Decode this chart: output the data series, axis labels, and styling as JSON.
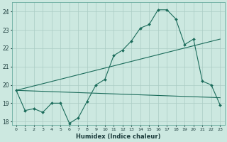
{
  "xlabel": "Humidex (Indice chaleur)",
  "bg_color": "#cce8e0",
  "grid_color": "#aaccc4",
  "line_color": "#1a6b5a",
  "xlim": [
    -0.5,
    23.5
  ],
  "ylim": [
    17.8,
    24.5
  ],
  "yticks": [
    18,
    19,
    20,
    21,
    22,
    23,
    24
  ],
  "xticks": [
    0,
    1,
    2,
    3,
    4,
    5,
    6,
    7,
    8,
    9,
    10,
    11,
    12,
    13,
    14,
    15,
    16,
    17,
    18,
    19,
    20,
    21,
    22,
    23
  ],
  "line1_x": [
    0,
    1,
    2,
    3,
    4,
    5,
    6,
    7,
    8,
    9,
    10,
    11,
    12,
    13,
    14,
    15,
    16,
    17,
    18,
    19,
    20,
    21,
    22,
    23
  ],
  "line1_y": [
    19.7,
    18.6,
    18.7,
    18.5,
    19.0,
    19.0,
    17.9,
    18.2,
    19.1,
    20.0,
    20.3,
    21.6,
    21.9,
    22.4,
    23.1,
    23.3,
    24.1,
    24.1,
    23.6,
    22.2,
    22.5,
    20.2,
    20.0,
    18.9
  ],
  "line2_x": [
    0,
    23
  ],
  "line2_y": [
    19.7,
    22.5
  ],
  "line3_x": [
    0,
    23
  ],
  "line3_y": [
    19.7,
    19.3
  ]
}
